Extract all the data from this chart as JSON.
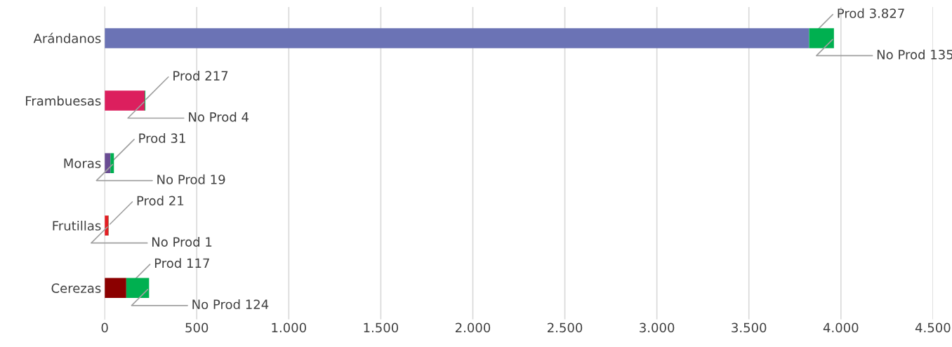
{
  "chart_data": {
    "type": "bar",
    "orientation": "horizontal",
    "stacked": true,
    "categories": [
      "Arándanos",
      "Frambuesas",
      "Moras",
      "Frutillas",
      "Cerezas"
    ],
    "series": [
      {
        "colors": [
          "#6b73b5",
          "#dc1f5e",
          "#6a4c93",
          "#e31e24",
          "#8b0000"
        ],
        "values": [
          3827,
          217,
          31,
          21,
          117
        ],
        "value_labels": [
          "Prod 3.827",
          "Prod 217",
          "Prod 31",
          "Prod 21",
          "Prod 117"
        ]
      },
      {
        "color": "#00b050",
        "values": [
          135,
          4,
          19,
          1,
          124
        ],
        "value_labels": [
          "No Prod 135",
          "No Prod 4",
          "No Prod 19",
          "No Prod 1",
          "No Prod 124"
        ]
      }
    ],
    "xlim": [
      0,
      4500
    ],
    "xticks": [
      0,
      500,
      {
        "value": 1000,
        "label": "1.000"
      },
      {
        "value": 1500,
        "label": "1.500"
      },
      {
        "value": 2000,
        "label": "2.000"
      },
      {
        "value": 2500,
        "label": "2.500"
      },
      {
        "value": 3000,
        "label": "3.000"
      },
      {
        "value": 3500,
        "label": "3.500"
      },
      {
        "value": 4000,
        "label": "4.000"
      },
      {
        "value": 4500,
        "label": "4.500"
      }
    ],
    "grid": "x",
    "legend": false
  }
}
